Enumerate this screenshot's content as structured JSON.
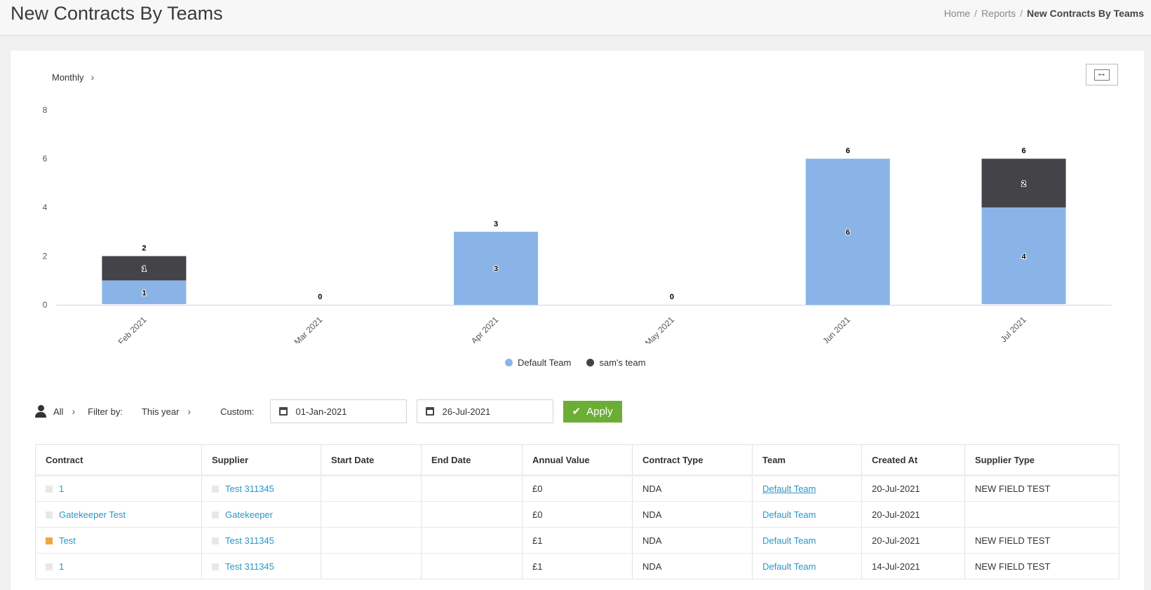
{
  "header": {
    "title": "New Contracts By Teams",
    "breadcrumb": {
      "home": "Home",
      "reports": "Reports",
      "current": "New Contracts By Teams",
      "separator": "/"
    }
  },
  "chart_controls": {
    "period": "Monthly"
  },
  "chart_data": {
    "type": "bar",
    "stacked": true,
    "categories": [
      "Feb 2021",
      "Mar 2021",
      "Apr 2021",
      "May 2021",
      "Jun 2021",
      "Jul 2021"
    ],
    "series": [
      {
        "name": "Default Team",
        "values": [
          1,
          0,
          3,
          0,
          6,
          4
        ],
        "color": "#8ab4e7"
      },
      {
        "name": "sam's team",
        "values": [
          1,
          0,
          0,
          0,
          0,
          2
        ],
        "color": "#434348"
      }
    ],
    "totals": [
      2,
      0,
      3,
      0,
      6,
      6
    ],
    "ylim": [
      0,
      8
    ],
    "yticks": [
      0,
      2,
      4,
      6,
      8
    ],
    "legend": "bottom-center",
    "grid": false
  },
  "filters": {
    "user": "All",
    "filter_by_label": "Filter by:",
    "filter_by_value": "This year",
    "custom_label": "Custom:",
    "start_date": "01-Jan-2021",
    "end_date": "26-Jul-2021",
    "apply_label": "Apply"
  },
  "table": {
    "columns": [
      "Contract",
      "Supplier",
      "Start Date",
      "End Date",
      "Annual Value",
      "Contract Type",
      "Team",
      "Created At",
      "Supplier Type"
    ],
    "rows": [
      {
        "contract": "1",
        "contract_marker": "grey",
        "supplier": "Test 311345",
        "start": "",
        "end": "",
        "value": "£0",
        "type": "NDA",
        "team": "Default Team",
        "team_underline": true,
        "created": "20-Jul-2021",
        "supplier_type": "NEW FIELD TEST"
      },
      {
        "contract": "Gatekeeper Test",
        "contract_marker": "grey",
        "supplier": "Gatekeeper",
        "start": "",
        "end": "",
        "value": "£0",
        "type": "NDA",
        "team": "Default Team",
        "team_underline": false,
        "created": "20-Jul-2021",
        "supplier_type": ""
      },
      {
        "contract": "Test",
        "contract_marker": "orange",
        "supplier": "Test 311345",
        "start": "",
        "end": "",
        "value": "£1",
        "type": "NDA",
        "team": "Default Team",
        "team_underline": false,
        "created": "20-Jul-2021",
        "supplier_type": "NEW FIELD TEST"
      },
      {
        "contract": "1",
        "contract_marker": "grey",
        "supplier": "Test 311345",
        "start": "",
        "end": "",
        "value": "£1",
        "type": "NDA",
        "team": "Default Team",
        "team_underline": false,
        "created": "14-Jul-2021",
        "supplier_type": "NEW FIELD TEST"
      }
    ]
  }
}
